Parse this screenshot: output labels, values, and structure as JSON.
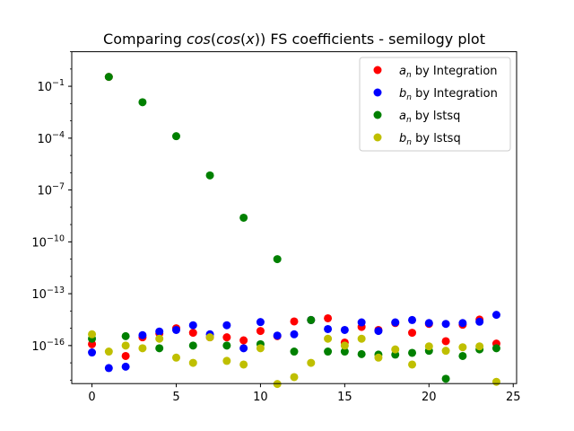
{
  "chart_data": {
    "type": "scatter",
    "title_parts": {
      "prefix": "Comparing ",
      "func_outer": "cos",
      "open1": "(",
      "func_inner": "cos",
      "open2": "(",
      "var": "x",
      "close": "))",
      "suffix": " FS coefficients - semilogy plot"
    },
    "xlabel": "",
    "ylabel": "",
    "xlim": [
      -1.2,
      25.2
    ],
    "ylim_exp": [
      -18.2,
      1.0
    ],
    "yscale": "log",
    "grid": false,
    "legend_position": "top-right",
    "x_ticks": [
      0,
      5,
      10,
      15,
      20,
      25
    ],
    "y_ticks": [
      {
        "base": "10",
        "exp": "−1",
        "value_exp": -1
      },
      {
        "base": "10",
        "exp": "−4",
        "value_exp": -4
      },
      {
        "base": "10",
        "exp": "−7",
        "value_exp": -7
      },
      {
        "base": "10",
        "exp": "−10",
        "value_exp": -10
      },
      {
        "base": "10",
        "exp": "−13",
        "value_exp": -13
      },
      {
        "base": "10",
        "exp": "−16",
        "value_exp": -16
      }
    ],
    "series": [
      {
        "key": "an-integration",
        "legend_sym": "a",
        "legend_sub": "n",
        "legend_rest": " by Integration",
        "color": "#ff0000",
        "x": [
          0,
          1,
          2,
          3,
          4,
          5,
          6,
          7,
          8,
          9,
          10,
          11,
          12,
          13,
          14,
          15,
          16,
          17,
          18,
          19,
          20,
          21,
          22,
          23,
          24
        ],
        "y": [
          1.2e-16,
          0.35,
          2.5e-17,
          3e-16,
          5e-16,
          1e-15,
          5.5e-16,
          3e-16,
          3e-16,
          2e-16,
          7e-16,
          3.5e-16,
          2.5e-15,
          3e-15,
          3.8e-15,
          1.5e-16,
          1.2e-15,
          8e-16,
          2e-15,
          5.5e-16,
          1.8e-15,
          1.8e-16,
          1.6e-15,
          3.2e-15,
          1.3e-16
        ]
      },
      {
        "key": "bn-integration",
        "legend_sym": "b",
        "legend_sub": "n",
        "legend_rest": " by Integration",
        "color": "#0000ff",
        "x": [
          0,
          1,
          2,
          3,
          4,
          5,
          6,
          7,
          8,
          9,
          10,
          11,
          12,
          13,
          14,
          15,
          16,
          17,
          18,
          19,
          20,
          21,
          22,
          23,
          24
        ],
        "y": [
          4e-17,
          5e-18,
          6e-18,
          4e-16,
          6.5e-16,
          8e-16,
          1.5e-15,
          4.5e-16,
          1.5e-15,
          7e-17,
          2.3e-15,
          3.8e-16,
          4.5e-16,
          3e-15,
          9e-16,
          8e-16,
          2.2e-15,
          7e-16,
          2.2e-15,
          3e-15,
          2e-15,
          1.8e-15,
          2e-15,
          2.4e-15,
          6e-15
        ]
      },
      {
        "key": "an-lstsq",
        "legend_sym": "a",
        "legend_sub": "n",
        "legend_rest": " by lstsq",
        "color": "#008000",
        "x": [
          0,
          1,
          2,
          3,
          4,
          5,
          6,
          7,
          8,
          9,
          10,
          11,
          12,
          13,
          14,
          15,
          16,
          17,
          18,
          19,
          20,
          21,
          22,
          23,
          24
        ],
        "y": [
          2.5e-16,
          0.35,
          3.5e-16,
          0.012,
          7e-17,
          0.00013,
          1e-16,
          7e-07,
          1e-16,
          2.5e-09,
          1.2e-16,
          1e-11,
          4.5e-17,
          3e-15,
          4.5e-17,
          4.5e-17,
          3.2e-17,
          3e-17,
          3e-17,
          3.8e-17,
          5e-17,
          1.2e-18,
          2.5e-17,
          6e-17,
          7e-17
        ]
      },
      {
        "key": "bn-lstsq",
        "legend_sym": "b",
        "legend_sub": "n",
        "legend_rest": " by lstsq",
        "color": "#bfbf00",
        "x": [
          0,
          1,
          2,
          3,
          4,
          5,
          6,
          7,
          8,
          9,
          10,
          11,
          12,
          13,
          14,
          15,
          16,
          17,
          18,
          19,
          20,
          21,
          22,
          23,
          24
        ],
        "y": [
          4.5e-16,
          4.5e-17,
          1e-16,
          7e-17,
          2.5e-16,
          2e-17,
          1e-17,
          3e-16,
          1.3e-17,
          8e-18,
          7e-17,
          6e-19,
          1.5e-18,
          1e-17,
          2.5e-16,
          1e-16,
          2.5e-16,
          2e-17,
          6e-17,
          8e-18,
          9e-17,
          5e-17,
          8e-17,
          9e-17,
          8e-19
        ]
      }
    ]
  }
}
